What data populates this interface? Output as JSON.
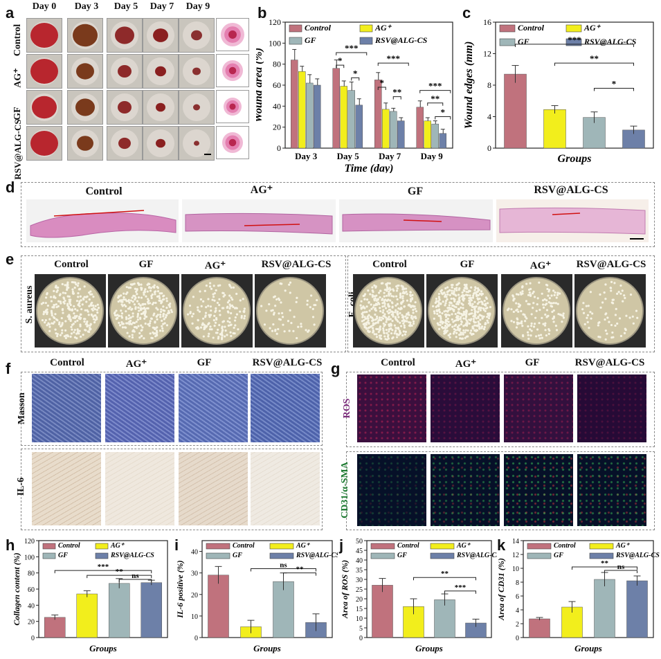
{
  "colors": {
    "control": "#c0727d",
    "ag": "#f2ee1c",
    "gf": "#9fb6b8",
    "rsv": "#6d80a8"
  },
  "panel_labels": [
    "a",
    "b",
    "c",
    "d",
    "e",
    "f",
    "g",
    "h",
    "i",
    "j",
    "k"
  ],
  "a": {
    "days": [
      "Day 0",
      "Day 3",
      "Day 5",
      "Day 7",
      "Day 9"
    ],
    "rows": [
      "Control",
      "AG⁺",
      "GF",
      "RSV@ALG-CS"
    ]
  },
  "d": {
    "groups": [
      "Control",
      "AG⁺",
      "GF",
      "RSV@ALG-CS"
    ]
  },
  "e": {
    "groups": [
      "Control",
      "GF",
      "AG⁺",
      "RSV@ALG-CS"
    ],
    "bacteria": [
      "S. aureus",
      "E. coli"
    ]
  },
  "f": {
    "groups": [
      "Control",
      "AG⁺",
      "GF",
      "RSV@ALG-CS"
    ],
    "rows": [
      "Masson",
      "IL-6"
    ]
  },
  "g": {
    "groups": [
      "Control",
      "AG⁺",
      "GF",
      "RSV@ALG-CS"
    ],
    "rows": [
      "ROS",
      "CD31/α-SMA"
    ]
  },
  "chart_data": [
    {
      "panel": "b",
      "type": "bar",
      "categories": [
        "Day 3",
        "Day 5",
        "Day 7",
        "Day 9"
      ],
      "series": [
        {
          "name": "Control",
          "values": [
            84,
            76,
            65,
            39
          ]
        },
        {
          "name": "AG⁺",
          "values": [
            73,
            59,
            37,
            26
          ]
        },
        {
          "name": "GF",
          "values": [
            62,
            55,
            35,
            23
          ]
        },
        {
          "name": "RSV@ALG-CS",
          "values": [
            60,
            41,
            26,
            14
          ]
        }
      ],
      "errors": [
        [
          10,
          8,
          7,
          6
        ],
        [
          5,
          5,
          6,
          3
        ],
        [
          8,
          8,
          3,
          3
        ],
        [
          6,
          6,
          3,
          4
        ]
      ],
      "xlabel": "Time (day)",
      "ylabel": "Wound area (%)",
      "ylim": [
        0,
        120
      ],
      "yticks": [
        0,
        20,
        40,
        60,
        80,
        100,
        120
      ],
      "significance": [
        "***",
        "*",
        "*",
        "***",
        "*",
        "**",
        "***",
        "**",
        "*"
      ]
    },
    {
      "panel": "c",
      "type": "bar",
      "categories": [
        "Control",
        "AG⁺",
        "GF",
        "RSV@ALG-CS"
      ],
      "values": [
        9.4,
        4.9,
        3.9,
        2.3
      ],
      "errors": [
        1.1,
        0.5,
        0.7,
        0.5
      ],
      "xlabel": "Groups",
      "ylabel": "Wound edges (mm)",
      "ylim": [
        0,
        16
      ],
      "yticks": [
        0,
        4,
        8,
        12,
        16
      ],
      "significance": [
        "***",
        "**",
        "*"
      ]
    },
    {
      "panel": "h",
      "type": "bar",
      "categories": [
        "Control",
        "AG⁺",
        "GF",
        "RSV@ALG-CS"
      ],
      "values": [
        25,
        54,
        67,
        68
      ],
      "errors": [
        3,
        4,
        6,
        3
      ],
      "xlabel": "Groups",
      "ylabel": "Collagen content (%)",
      "ylim": [
        0,
        120
      ],
      "yticks": [
        0,
        20,
        40,
        60,
        80,
        100,
        120
      ],
      "significance": [
        "***",
        "**",
        "ns"
      ]
    },
    {
      "panel": "i",
      "type": "bar",
      "categories": [
        "Control",
        "AG⁺",
        "GF",
        "RSV@ALG-CS"
      ],
      "values": [
        29,
        5,
        26,
        7
      ],
      "errors": [
        4,
        3,
        4,
        4
      ],
      "xlabel": "Groups",
      "ylabel": "IL-6 positive (%)",
      "ylim": [
        0,
        45
      ],
      "yticks": [
        0,
        10,
        20,
        30,
        40
      ],
      "significance": [
        "ns",
        "**"
      ]
    },
    {
      "panel": "j",
      "type": "bar",
      "categories": [
        "Control",
        "AG⁺",
        "GF",
        "RSV@ALG-CS"
      ],
      "values": [
        27,
        16,
        19.5,
        7.5
      ],
      "errors": [
        3.5,
        4,
        3,
        2
      ],
      "xlabel": "Groups",
      "ylabel": "Area of ROS (%)",
      "ylim": [
        0,
        50
      ],
      "yticks": [
        0,
        5,
        10,
        15,
        20,
        25,
        30,
        35,
        40,
        45,
        50
      ],
      "significance": [
        "**",
        "***"
      ]
    },
    {
      "panel": "k",
      "type": "bar",
      "categories": [
        "Control",
        "AG⁺",
        "GF",
        "RSV@ALG-CS"
      ],
      "values": [
        2.7,
        4.4,
        8.4,
        8.2
      ],
      "errors": [
        0.2,
        0.8,
        1.0,
        0.7
      ],
      "xlabel": "Groups",
      "ylabel": "Area of CD31 (%)",
      "ylim": [
        0,
        14
      ],
      "yticks": [
        0,
        2,
        4,
        6,
        8,
        10,
        12,
        14
      ],
      "significance": [
        "**",
        "ns"
      ]
    }
  ]
}
